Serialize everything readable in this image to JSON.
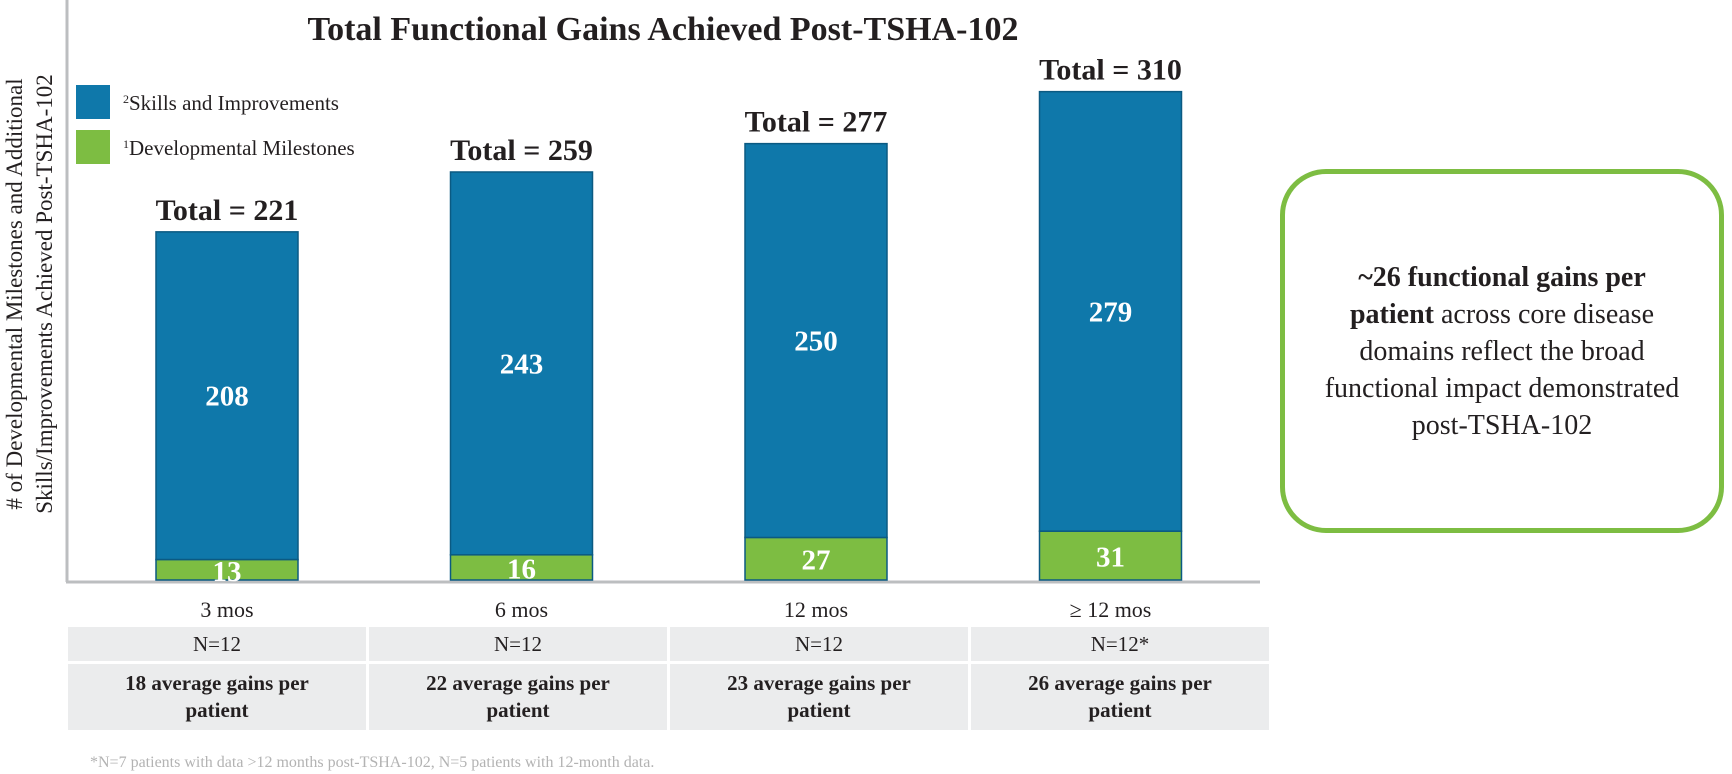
{
  "colors": {
    "skills": "#0f78aa",
    "milestones": "#7dbd42",
    "axis": "#bcbec0",
    "callout_border": "#7dbd42"
  },
  "chart_data": {
    "type": "bar",
    "stacked": true,
    "title": "Total Functional Gains Achieved Post-TSHA-102",
    "ylabel_line1": "# of Developmental Milestones and Additional",
    "ylabel_line2": "Skills/Improvements Achieved Post-TSHA-102",
    "xlabel": "",
    "categories": [
      "3 mos",
      "6 mos",
      "12 mos",
      "≥ 12 mos"
    ],
    "series": [
      {
        "name": "Developmental Milestones",
        "sup": "1",
        "values": [
          13,
          16,
          27,
          31
        ]
      },
      {
        "name": "Skills and Improvements",
        "sup": "2",
        "values": [
          208,
          243,
          250,
          279
        ]
      }
    ],
    "totals": [
      221,
      259,
      277,
      310
    ],
    "total_labels": [
      "Total = 221",
      "Total = 259",
      "Total = 277",
      "Total = 310"
    ],
    "legend_position": "top-left",
    "grid": false,
    "ylim": [
      0,
      365
    ]
  },
  "table": {
    "n_values": [
      "N=12",
      "N=12",
      "N=12",
      "N=12*"
    ],
    "avg_gains": [
      "18 average gains per patient",
      "22 average gains per patient",
      "23 average gains per patient",
      "26 average gains per patient"
    ]
  },
  "footnote": "*N=7 patients with data >12 months post-TSHA-102, N=5 patients with 12-month data.",
  "callout": {
    "bold": "~26 functional gains per patient",
    "rest": " across core disease domains reflect the broad functional impact demonstrated post-TSHA-102"
  }
}
